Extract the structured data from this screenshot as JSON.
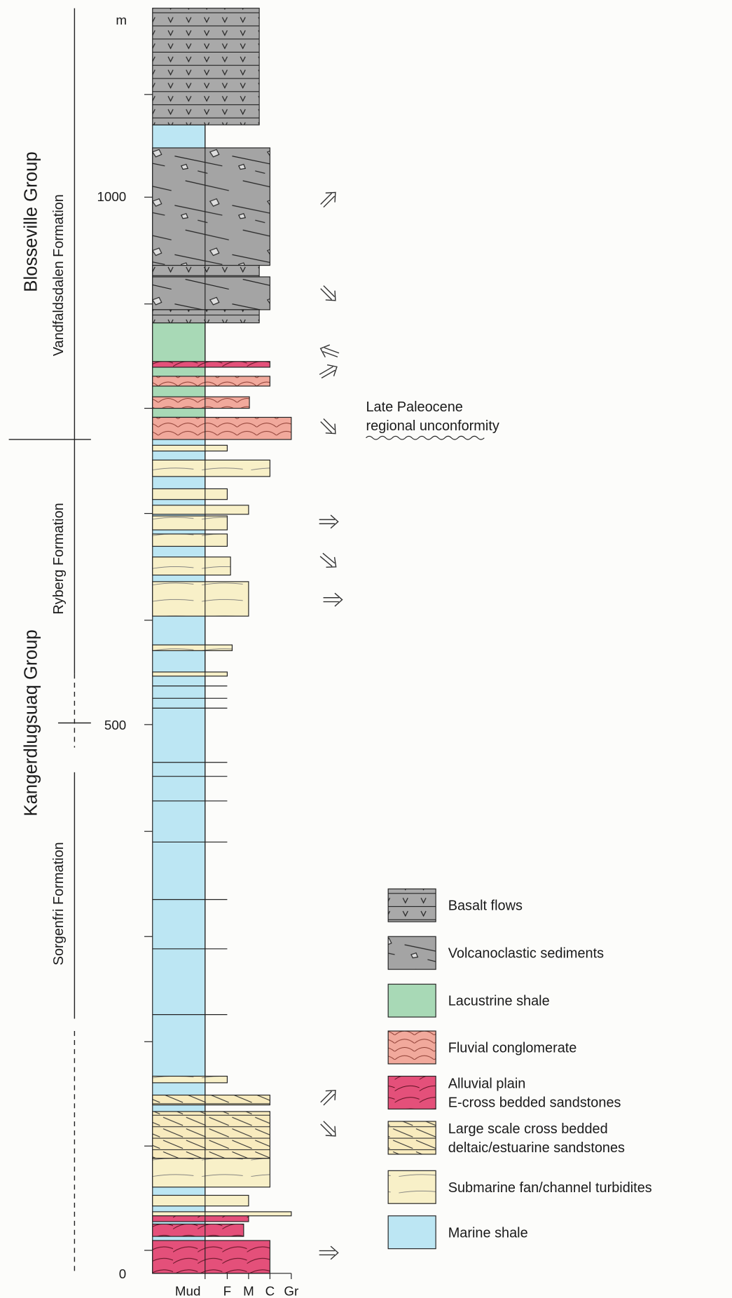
{
  "header": {
    "unit": "m"
  },
  "depth_labels": [
    "1000",
    "500",
    "0"
  ],
  "groups": [
    {
      "name": "Blosseville Group",
      "formations": [
        "Vandfaldsdalen Formation"
      ]
    },
    {
      "name": "Kangerdlugsuaq Group",
      "formations": [
        "Ryberg Formation",
        "Sorgenfri Formation"
      ]
    }
  ],
  "grain_size_labels": [
    "Mud",
    "F",
    "M",
    "C",
    "Gr"
  ],
  "annotation": {
    "lines": [
      "Late Paleocene",
      "regional unconformity"
    ]
  },
  "legend": [
    {
      "lines": [
        "Basalt flows"
      ]
    },
    {
      "lines": [
        "Volcanoclastic sediments"
      ]
    },
    {
      "lines": [
        "Lacustrine shale"
      ]
    },
    {
      "lines": [
        "Fluvial conglomerate"
      ]
    },
    {
      "lines": [
        "Alluvial plain",
        "E-cross bedded sandstones"
      ]
    },
    {
      "lines": [
        "Large scale cross bedded",
        "deltaic/estuarine sandstones"
      ]
    },
    {
      "lines": [
        "Submarine fan/channel turbidites"
      ]
    },
    {
      "lines": [
        "Marine shale"
      ]
    }
  ]
}
